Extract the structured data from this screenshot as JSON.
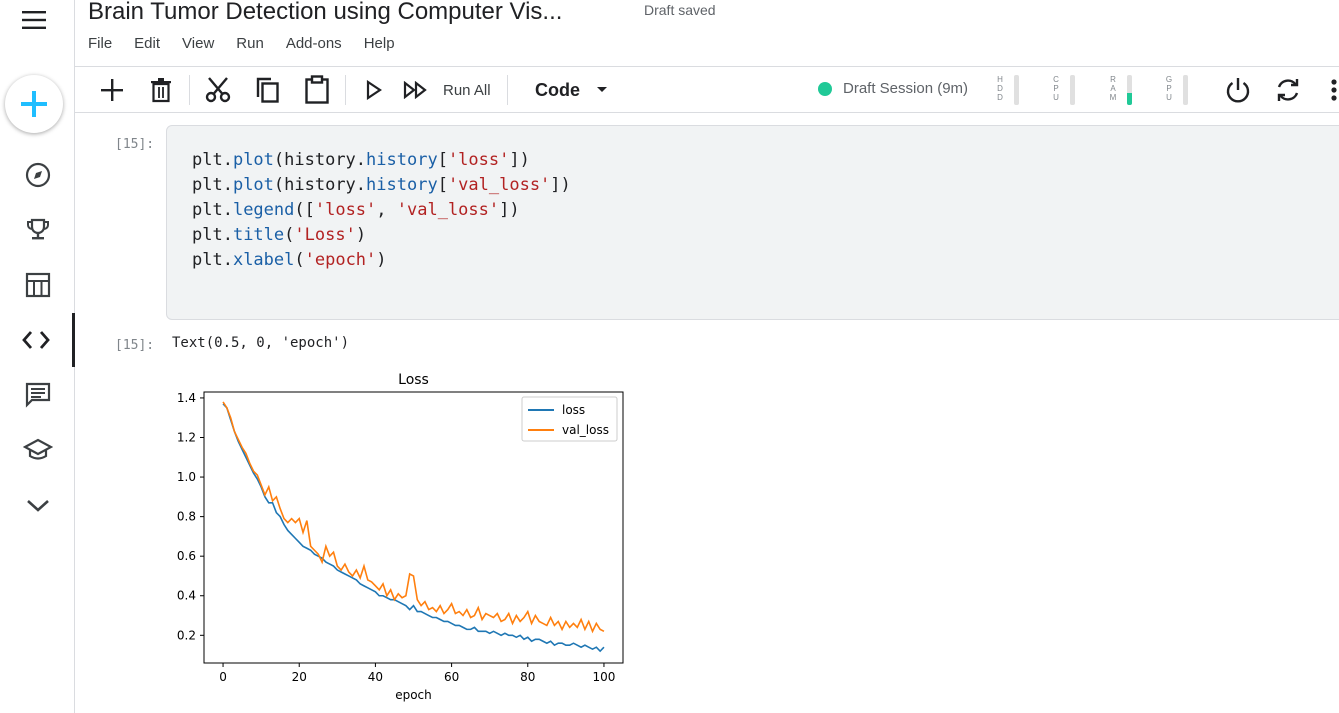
{
  "notebook": {
    "title": "Brain Tumor Detection  using Computer Vis...",
    "status": "Draft saved",
    "menu": [
      "File",
      "Edit",
      "View",
      "Run",
      "Add-ons",
      "Help"
    ]
  },
  "toolbar": {
    "run_all_label": "Run All",
    "cell_type": "Code",
    "session_label": "Draft Session (9m)",
    "session_color": "#20c997",
    "meters": [
      {
        "label": "H\nD\nD",
        "fill": 0.0
      },
      {
        "label": "C\nP\nU",
        "fill": 0.0
      },
      {
        "label": "R\nA\nM",
        "fill": 0.4
      },
      {
        "label": "G\nP\nU",
        "fill": 0.0
      }
    ]
  },
  "sidebar": {
    "items": [
      "create",
      "compass",
      "trophy",
      "table",
      "code",
      "comments",
      "learn",
      "more"
    ],
    "active": "code"
  },
  "cells": {
    "input_prompt": "[15]:",
    "output_prompt": "[15]:",
    "code_lines": [
      [
        [
          "plt.",
          ""
        ],
        [
          "plot",
          "fn"
        ],
        [
          "(history.",
          ""
        ],
        [
          "history",
          "fn"
        ],
        [
          "[",
          ""
        ],
        [
          "'loss'",
          "str"
        ],
        [
          "])",
          ""
        ]
      ],
      [
        [
          "plt.",
          ""
        ],
        [
          "plot",
          "fn"
        ],
        [
          "(history.",
          ""
        ],
        [
          "history",
          "fn"
        ],
        [
          "[",
          ""
        ],
        [
          "'val_loss'",
          "str"
        ],
        [
          "])",
          ""
        ]
      ],
      [
        [
          "plt.",
          ""
        ],
        [
          "legend",
          "fn"
        ],
        [
          "([",
          ""
        ],
        [
          "'loss'",
          "str"
        ],
        [
          ", ",
          ""
        ],
        [
          "'val_loss'",
          "str"
        ],
        [
          "])",
          ""
        ]
      ],
      [
        [
          "plt.",
          ""
        ],
        [
          "title",
          "fn"
        ],
        [
          "(",
          ""
        ],
        [
          "'Loss'",
          "str"
        ],
        [
          ")",
          ""
        ]
      ],
      [
        [
          "plt.",
          ""
        ],
        [
          "xlabel",
          "fn"
        ],
        [
          "(",
          ""
        ],
        [
          "'epoch'",
          "str"
        ],
        [
          ")",
          ""
        ]
      ]
    ],
    "output_text": "Text(0.5, 0, 'epoch')"
  },
  "chart_data": {
    "type": "line",
    "title": "Loss",
    "xlabel": "epoch",
    "ylabel": "",
    "xlim": [
      -5,
      105
    ],
    "ylim": [
      0.06,
      1.43
    ],
    "xticks": [
      0,
      20,
      40,
      60,
      80,
      100
    ],
    "yticks": [
      0.2,
      0.4,
      0.6,
      0.8,
      1.0,
      1.2,
      1.4
    ],
    "ytick_labels": [
      "0.2",
      "0.4",
      "0.6",
      "0.8",
      "1.0",
      "1.2",
      "1.4"
    ],
    "legend_position": "top-right",
    "grid": false,
    "series": [
      {
        "name": "loss",
        "color": "#1f77b4",
        "values": [
          1.37,
          1.35,
          1.29,
          1.23,
          1.18,
          1.14,
          1.1,
          1.06,
          1.02,
          0.99,
          0.95,
          0.9,
          0.87,
          0.87,
          0.82,
          0.8,
          0.76,
          0.73,
          0.71,
          0.69,
          0.67,
          0.65,
          0.64,
          0.63,
          0.61,
          0.6,
          0.59,
          0.57,
          0.56,
          0.55,
          0.53,
          0.52,
          0.51,
          0.5,
          0.49,
          0.48,
          0.46,
          0.45,
          0.44,
          0.43,
          0.42,
          0.4,
          0.4,
          0.39,
          0.38,
          0.38,
          0.37,
          0.36,
          0.35,
          0.33,
          0.35,
          0.32,
          0.32,
          0.31,
          0.3,
          0.29,
          0.29,
          0.28,
          0.27,
          0.27,
          0.26,
          0.25,
          0.25,
          0.24,
          0.23,
          0.23,
          0.24,
          0.22,
          0.22,
          0.22,
          0.21,
          0.22,
          0.21,
          0.2,
          0.21,
          0.2,
          0.2,
          0.19,
          0.2,
          0.18,
          0.19,
          0.17,
          0.18,
          0.18,
          0.17,
          0.16,
          0.17,
          0.15,
          0.16,
          0.16,
          0.15,
          0.15,
          0.16,
          0.15,
          0.14,
          0.15,
          0.14,
          0.13,
          0.14,
          0.12,
          0.14
        ]
      },
      {
        "name": "val_loss",
        "color": "#ff7f0e",
        "values": [
          1.38,
          1.35,
          1.3,
          1.23,
          1.19,
          1.15,
          1.12,
          1.07,
          1.03,
          1.01,
          0.96,
          0.91,
          0.95,
          0.88,
          0.9,
          0.84,
          0.79,
          0.77,
          0.79,
          0.77,
          0.79,
          0.72,
          0.78,
          0.65,
          0.63,
          0.61,
          0.57,
          0.65,
          0.6,
          0.62,
          0.55,
          0.53,
          0.56,
          0.52,
          0.5,
          0.53,
          0.49,
          0.55,
          0.48,
          0.47,
          0.45,
          0.43,
          0.46,
          0.4,
          0.43,
          0.38,
          0.41,
          0.39,
          0.4,
          0.51,
          0.5,
          0.38,
          0.35,
          0.37,
          0.33,
          0.34,
          0.32,
          0.35,
          0.31,
          0.33,
          0.36,
          0.31,
          0.32,
          0.3,
          0.33,
          0.29,
          0.3,
          0.34,
          0.28,
          0.31,
          0.3,
          0.29,
          0.31,
          0.27,
          0.28,
          0.31,
          0.26,
          0.3,
          0.27,
          0.29,
          0.32,
          0.26,
          0.3,
          0.27,
          0.26,
          0.25,
          0.29,
          0.25,
          0.27,
          0.23,
          0.27,
          0.24,
          0.26,
          0.24,
          0.28,
          0.23,
          0.27,
          0.22,
          0.26,
          0.23,
          0.22
        ]
      }
    ]
  }
}
